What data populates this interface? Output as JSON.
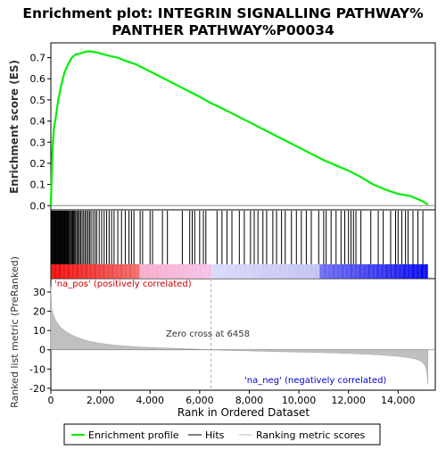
{
  "chart_data": {
    "type": "line",
    "title": "Enrichment plot: INTEGRIN SIGNALLING PATHWAY%\nPANTHER PATHWAY%P00034",
    "title_lines": [
      "Enrichment plot: INTEGRIN SIGNALLING PATHWAY%",
      "PANTHER PATHWAY%P00034"
    ],
    "xlabel": "Rank in Ordered Dataset",
    "es_ylabel": "Enrichment score (ES)",
    "metric_ylabel": "Ranked list metric (PreRanked)",
    "xlim": [
      0,
      15500
    ],
    "es_ylim": [
      -0.02,
      0.77
    ],
    "metric_ylim": [
      -21,
      37
    ],
    "x_ticks": [
      0,
      2000,
      4000,
      6000,
      8000,
      10000,
      12000,
      14000
    ],
    "x_tick_labels": [
      "0",
      "2,000",
      "4,000",
      "6,000",
      "8,000",
      "10,000",
      "12,000",
      "14,000"
    ],
    "es_ticks": [
      0.0,
      0.1,
      0.2,
      0.3,
      0.4,
      0.5,
      0.6,
      0.7
    ],
    "es_tick_labels": [
      "0.0",
      "0.1",
      "0.2",
      "0.3",
      "0.4",
      "0.5",
      "0.6",
      "0.7"
    ],
    "metric_ticks": [
      -20,
      -10,
      0,
      10,
      20,
      30
    ],
    "metric_tick_labels": [
      "-20",
      "-10",
      "0",
      "10",
      "20",
      "30"
    ],
    "dataset_size": 15200,
    "zero_cross": 6458,
    "zero_cross_label": "Zero cross at 6458",
    "pos_label": "'na_pos' (positively correlated)",
    "neg_label": "'na_neg' (negatively correlated)",
    "series": [
      {
        "name": "Enrichment profile",
        "color": "#00ee00",
        "x": [
          0,
          60,
          120,
          200,
          300,
          420,
          550,
          700,
          850,
          1000,
          1200,
          1400,
          1550,
          1750,
          2000,
          2300,
          2700,
          3000,
          3400,
          4000,
          5000,
          6000,
          6458,
          7000,
          8000,
          9000,
          10000,
          11000,
          12000,
          12500,
          13000,
          13500,
          14000,
          14500,
          15000,
          15200
        ],
        "y": [
          0.0,
          0.25,
          0.36,
          0.42,
          0.5,
          0.57,
          0.63,
          0.67,
          0.7,
          0.715,
          0.72,
          0.728,
          0.73,
          0.727,
          0.72,
          0.71,
          0.7,
          0.685,
          0.67,
          0.635,
          0.575,
          0.515,
          0.485,
          0.455,
          0.395,
          0.335,
          0.275,
          0.215,
          0.165,
          0.135,
          0.1,
          0.075,
          0.055,
          0.045,
          0.02,
          0.005
        ]
      }
    ],
    "hits_legend": "Hits",
    "metric_legend": "Ranking metric scores",
    "hits_color": "#000000",
    "metric_fill_color": "#c0c0c0",
    "colors": {
      "es_line": "#00ee00",
      "pos_red": "#ee0000",
      "mid_pink": "#f4c0e8",
      "mid_lilac": "#d8d8f8",
      "neg_blue": "#0000ee",
      "zero_line": "#aaaaaa"
    },
    "hits": [
      30,
      60,
      90,
      120,
      150,
      180,
      210,
      240,
      270,
      300,
      330,
      360,
      390,
      420,
      450,
      480,
      510,
      540,
      570,
      600,
      630,
      660,
      690,
      720,
      760,
      800,
      840,
      880,
      920,
      960,
      1000,
      1050,
      1100,
      1150,
      1200,
      1260,
      1320,
      1380,
      1440,
      1500,
      1560,
      1620,
      1700,
      1780,
      1850,
      1950,
      2050,
      2150,
      2250,
      2350,
      2450,
      2550,
      2700,
      2850,
      3000,
      3150,
      3250,
      3350,
      3600,
      3700,
      4000,
      4100,
      4500,
      4700,
      5300,
      5600,
      5700,
      5800,
      6000,
      6150,
      6250,
      6700,
      6900,
      7100,
      7300,
      7600,
      7800,
      8050,
      8200,
      8350,
      8550,
      8700,
      8950,
      9100,
      9300,
      9450,
      9700,
      9900,
      10100,
      10300,
      10500,
      10800,
      11000,
      11100,
      11300,
      11500,
      11700,
      11850,
      12000,
      12100,
      12200,
      12300,
      12500,
      12900,
      13200,
      13400,
      13700,
      13900,
      14000,
      14150,
      14300,
      14400,
      14600,
      14800,
      15000
    ],
    "metric_curve": {
      "x": [
        0,
        30,
        80,
        150,
        250,
        400,
        600,
        800,
        1000,
        1300,
        1600,
        2000,
        2500,
        3000,
        3500,
        4000,
        5000,
        6000,
        6458,
        7000,
        8000,
        9000,
        10000,
        11000,
        12000,
        13000,
        13500,
        14000,
        14400,
        14700,
        14900,
        15000,
        15080,
        15130,
        15170,
        15200
      ],
      "y": [
        33,
        22,
        19,
        16.5,
        14,
        11.5,
        9.5,
        8,
        6.8,
        5.3,
        4.3,
        3.3,
        2.5,
        1.9,
        1.5,
        1.2,
        0.7,
        0.25,
        0.0,
        -0.25,
        -0.6,
        -0.9,
        -1.2,
        -1.5,
        -1.9,
        -2.5,
        -2.9,
        -3.4,
        -4.0,
        -4.8,
        -5.8,
        -6.8,
        -8.0,
        -9.8,
        -12.5,
        -18
      ]
    }
  }
}
